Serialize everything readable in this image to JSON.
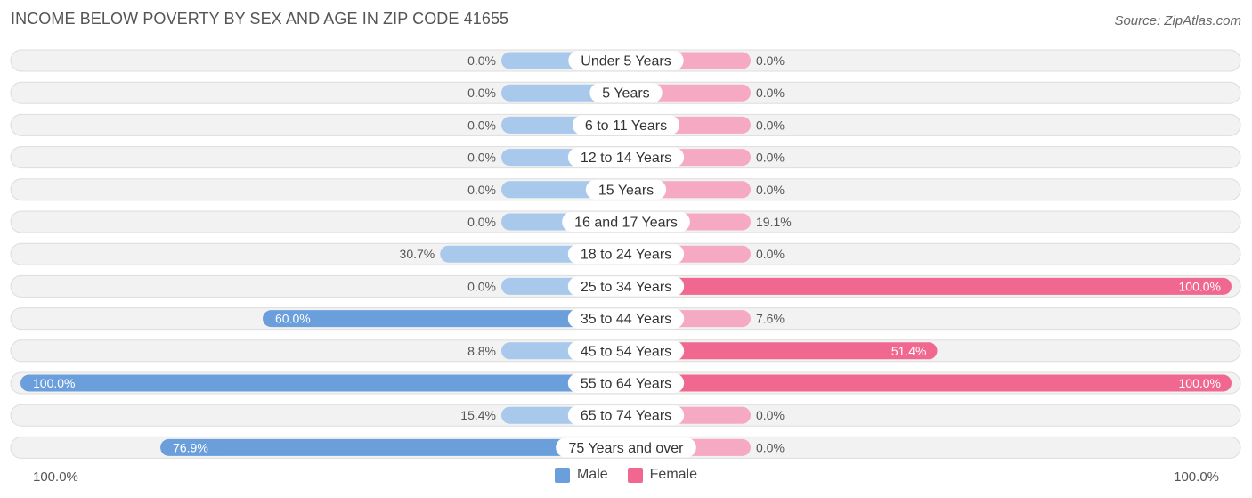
{
  "header": {
    "title": "INCOME BELOW POVERTY BY SEX AND AGE IN ZIP CODE 41655",
    "source": "Source: ZipAtlas.com"
  },
  "axis": {
    "left_label": "100.0%",
    "right_label": "100.0%"
  },
  "colors": {
    "male_light": "#a8c8ec",
    "male_dark": "#6a9fdc",
    "female_light": "#f5a9c2",
    "female_dark": "#f06890",
    "row_bg": "#f2f2f2",
    "row_border": "#dddddd"
  },
  "chart_data": {
    "type": "bar",
    "orientation": "horizontal-diverging",
    "title": "INCOME BELOW POVERTY BY SEX AND AGE IN ZIP CODE 41655",
    "xlim": [
      -100,
      100
    ],
    "legend_position": "bottom-center",
    "categories": [
      "Under 5 Years",
      "5 Years",
      "6 to 11 Years",
      "12 to 14 Years",
      "15 Years",
      "16 and 17 Years",
      "18 to 24 Years",
      "25 to 34 Years",
      "35 to 44 Years",
      "45 to 54 Years",
      "55 to 64 Years",
      "65 to 74 Years",
      "75 Years and over"
    ],
    "series": [
      {
        "name": "Male",
        "values": [
          0.0,
          0.0,
          0.0,
          0.0,
          0.0,
          0.0,
          30.7,
          0.0,
          60.0,
          8.8,
          100.0,
          15.4,
          76.9
        ],
        "labels": [
          "0.0%",
          "0.0%",
          "0.0%",
          "0.0%",
          "0.0%",
          "0.0%",
          "30.7%",
          "0.0%",
          "60.0%",
          "8.8%",
          "100.0%",
          "15.4%",
          "76.9%"
        ]
      },
      {
        "name": "Female",
        "values": [
          0.0,
          0.0,
          0.0,
          0.0,
          0.0,
          19.1,
          0.0,
          100.0,
          7.6,
          51.4,
          100.0,
          0.0,
          0.0
        ],
        "labels": [
          "0.0%",
          "0.0%",
          "0.0%",
          "0.0%",
          "0.0%",
          "19.1%",
          "0.0%",
          "100.0%",
          "7.6%",
          "51.4%",
          "100.0%",
          "0.0%",
          "0.0%"
        ]
      }
    ]
  }
}
